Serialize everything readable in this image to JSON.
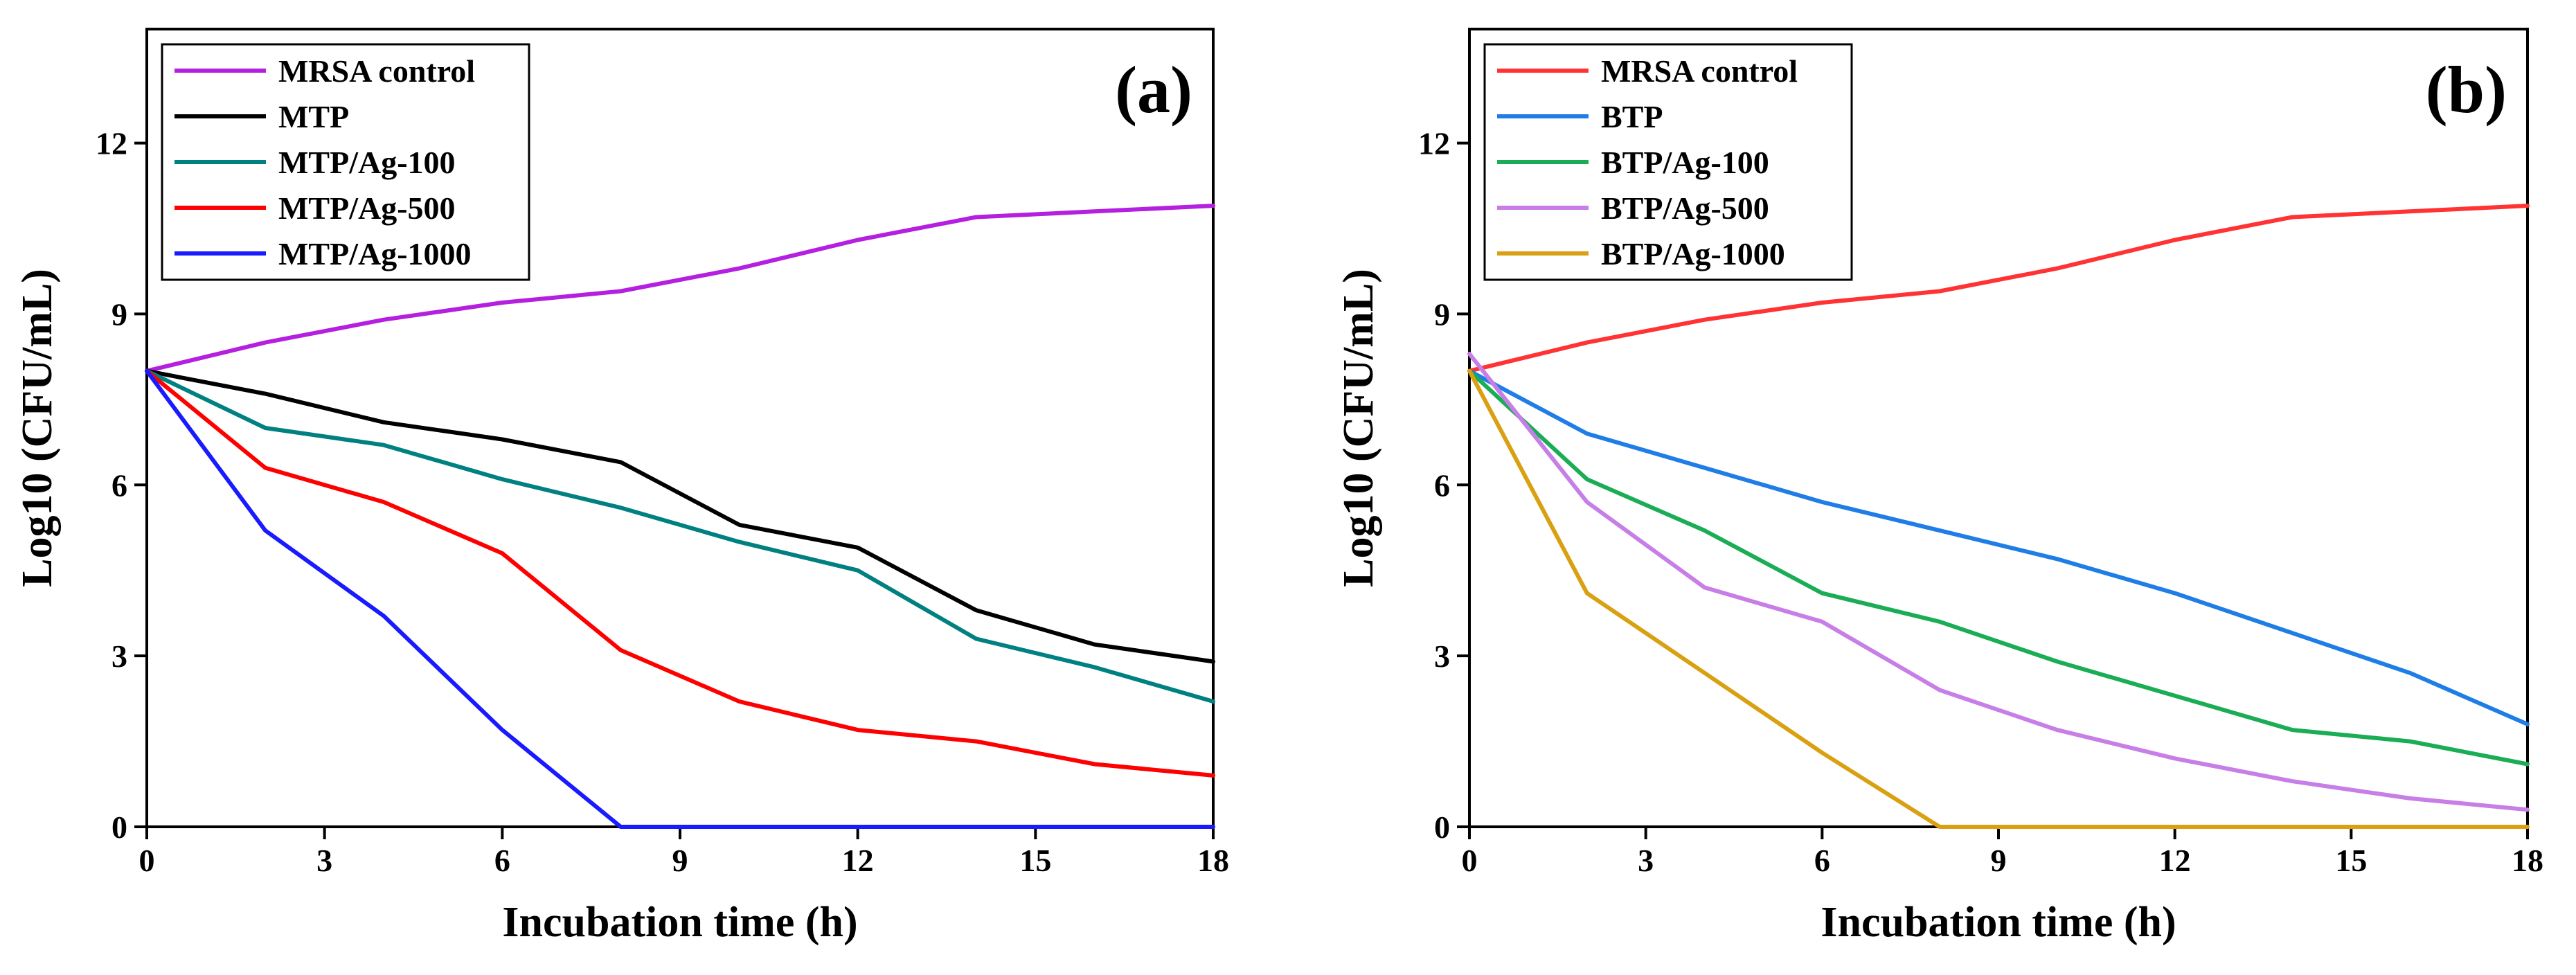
{
  "chart_data": [
    {
      "type": "line",
      "panel_label": "(a)",
      "xlabel": "Incubation time (h)",
      "ylabel": "Log10 (CFU/mL)",
      "xlim": [
        0,
        18
      ],
      "ylim": [
        0,
        14
      ],
      "xticks": [
        0,
        3,
        6,
        9,
        12,
        15,
        18
      ],
      "yticks": [
        0,
        3,
        6,
        9,
        12
      ],
      "legend_position": "top-left",
      "series": [
        {
          "name": "MRSA control",
          "color": "#b41fe0",
          "x": [
            0,
            2,
            4,
            6,
            8,
            10,
            12,
            14,
            16,
            18
          ],
          "values": [
            8.0,
            8.5,
            8.9,
            9.2,
            9.4,
            9.8,
            10.3,
            10.7,
            10.8,
            10.9
          ]
        },
        {
          "name": "MTP",
          "color": "#000000",
          "x": [
            0,
            2,
            4,
            6,
            8,
            10,
            12,
            14,
            16,
            18
          ],
          "values": [
            8.0,
            7.6,
            7.1,
            6.8,
            6.4,
            5.3,
            4.9,
            3.8,
            3.2,
            2.9
          ]
        },
        {
          "name": "MTP/Ag-100",
          "color": "#008080",
          "x": [
            0,
            2,
            4,
            6,
            8,
            10,
            12,
            14,
            16,
            18
          ],
          "values": [
            8.0,
            7.0,
            6.7,
            6.1,
            5.6,
            5.0,
            4.5,
            3.3,
            2.8,
            2.2
          ]
        },
        {
          "name": "MTP/Ag-500",
          "color": "#ff0000",
          "x": [
            0,
            2,
            4,
            6,
            8,
            10,
            12,
            14,
            16,
            18
          ],
          "values": [
            8.0,
            6.3,
            5.7,
            4.8,
            3.1,
            2.2,
            1.7,
            1.5,
            1.1,
            0.9
          ]
        },
        {
          "name": "MTP/Ag-1000",
          "color": "#1a1aff",
          "x": [
            0,
            2,
            4,
            6,
            8,
            10,
            12,
            14,
            16,
            18
          ],
          "values": [
            8.0,
            5.2,
            3.7,
            1.7,
            0,
            0,
            0,
            0,
            0,
            0
          ]
        }
      ]
    },
    {
      "type": "line",
      "panel_label": "(b)",
      "xlabel": "Incubation time (h)",
      "ylabel": "Log10 (CFU/mL)",
      "xlim": [
        0,
        18
      ],
      "ylim": [
        0,
        14
      ],
      "xticks": [
        0,
        3,
        6,
        9,
        12,
        15,
        18
      ],
      "yticks": [
        0,
        3,
        6,
        9,
        12
      ],
      "legend_position": "top-left",
      "series": [
        {
          "name": "MRSA control",
          "color": "#ff3333",
          "x": [
            0,
            2,
            4,
            6,
            8,
            10,
            12,
            14,
            16,
            18
          ],
          "values": [
            8.0,
            8.5,
            8.9,
            9.2,
            9.4,
            9.8,
            10.3,
            10.7,
            10.8,
            10.9
          ]
        },
        {
          "name": "BTP",
          "color": "#1f7de6",
          "x": [
            0,
            2,
            4,
            6,
            8,
            10,
            12,
            14,
            16,
            18
          ],
          "values": [
            8.0,
            6.9,
            6.3,
            5.7,
            5.2,
            4.7,
            4.1,
            3.4,
            2.7,
            1.8
          ]
        },
        {
          "name": "BTP/Ag-100",
          "color": "#1aad55",
          "x": [
            0,
            2,
            4,
            6,
            8,
            10,
            12,
            14,
            16,
            18
          ],
          "values": [
            8.0,
            6.1,
            5.2,
            4.1,
            3.6,
            2.9,
            2.3,
            1.7,
            1.5,
            1.1
          ]
        },
        {
          "name": "BTP/Ag-500",
          "color": "#c77ee6",
          "x": [
            0,
            2,
            4,
            6,
            8,
            10,
            12,
            14,
            16,
            18
          ],
          "values": [
            8.3,
            5.7,
            4.2,
            3.6,
            2.4,
            1.7,
            1.2,
            0.8,
            0.5,
            0.3
          ]
        },
        {
          "name": "BTP/Ag-1000",
          "color": "#d9a012",
          "x": [
            0,
            2,
            4,
            6,
            8,
            10,
            12,
            14,
            16,
            18
          ],
          "values": [
            8.0,
            4.1,
            2.7,
            1.3,
            0,
            0,
            0,
            0,
            0,
            0
          ]
        }
      ]
    }
  ]
}
